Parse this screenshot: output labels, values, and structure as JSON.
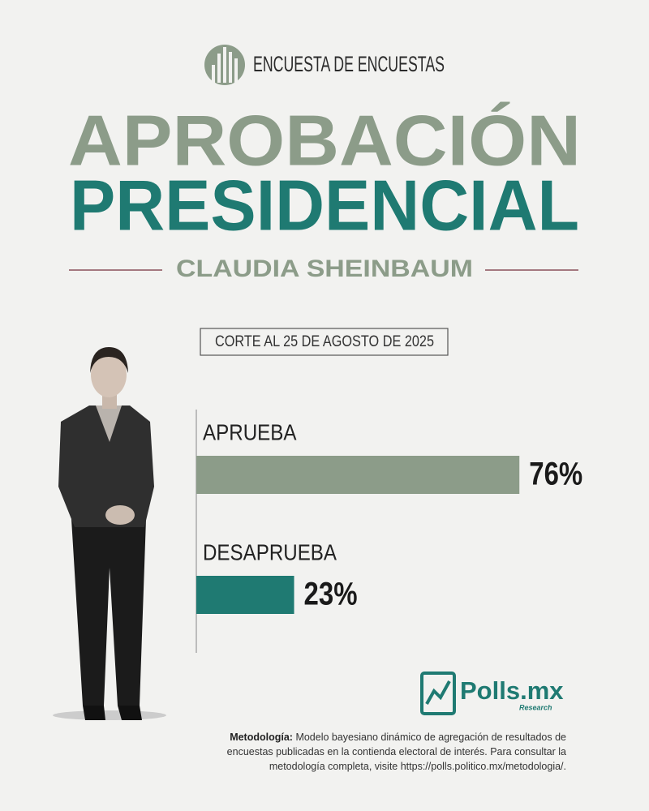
{
  "chart_data": {
    "type": "bar",
    "orientation": "horizontal",
    "kicker": "ENCUESTA DE ENCUESTAS",
    "title_lines": [
      "APROBACIÓN",
      "PRESIDENCIAL"
    ],
    "subtitle": "CLAUDIA SHEINBAUM",
    "date_note": "CORTE AL 25 DE AGOSTO DE 2025",
    "categories": [
      "APRUEBA",
      "DESAPRUEBA"
    ],
    "values": [
      76,
      23
    ],
    "value_labels": [
      "76%",
      "23%"
    ],
    "colors": [
      "#8c9c89",
      "#1f7a72"
    ],
    "xlim": [
      0,
      100
    ],
    "brand": "Polls.mx",
    "brand_tagline": "Research",
    "methodology_label": "Metodología:",
    "methodology_text": "Modelo bayesiano dinámico de agregación de resultados de encuestas publicadas en la contienda electoral de interés. Para consultar la metodología completa, visite https://polls.politico.mx/metodologia/."
  }
}
